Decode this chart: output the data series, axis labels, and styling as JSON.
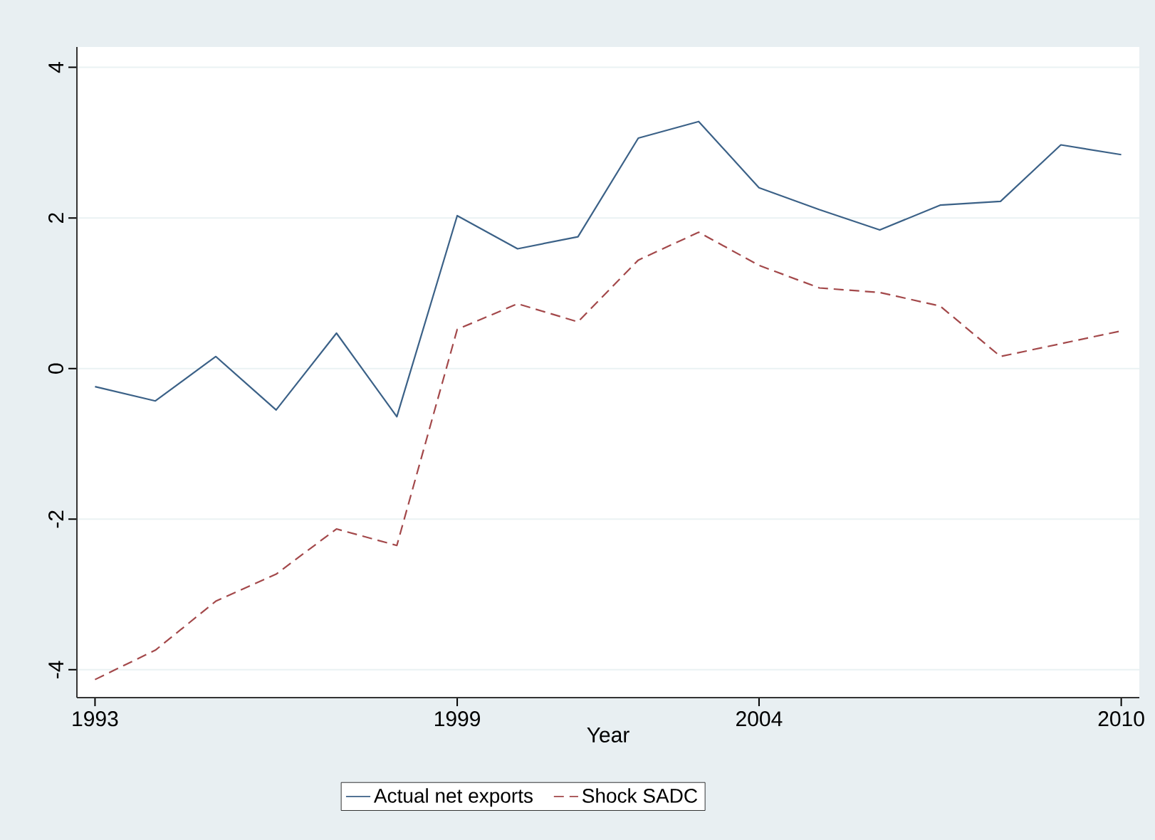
{
  "chart_data": {
    "type": "line",
    "xlabel": "Year",
    "x": [
      1993,
      1994,
      1995,
      1996,
      1997,
      1998,
      1999,
      2000,
      2001,
      2002,
      2003,
      2004,
      2005,
      2006,
      2007,
      2008,
      2009,
      2010
    ],
    "series": [
      {
        "name": "Actual net exports",
        "color": "#3b6187",
        "line_style": "solid",
        "values": [
          -0.24,
          -0.43,
          0.16,
          -0.55,
          0.47,
          -0.64,
          2.03,
          1.59,
          1.75,
          3.06,
          3.28,
          2.4,
          2.11,
          1.84,
          2.17,
          2.22,
          2.97,
          2.84
        ]
      },
      {
        "name": "Shock SADC",
        "color": "#a3484a",
        "line_style": "dashed",
        "values": [
          -4.13,
          -3.74,
          -3.09,
          -2.73,
          -2.13,
          -2.35,
          0.52,
          0.86,
          0.62,
          1.44,
          1.81,
          1.37,
          1.07,
          1.01,
          0.83,
          0.16,
          0.33,
          0.5
        ]
      }
    ],
    "xlim": [
      1992.7,
      2010.3
    ],
    "ylim": [
      -4.37,
      4.27
    ],
    "xticks": [
      1993,
      1999,
      2004,
      2010
    ],
    "yticks": [
      -4,
      -2,
      0,
      2,
      4
    ],
    "grid": "y",
    "legend": "bottom",
    "marker": "none"
  }
}
